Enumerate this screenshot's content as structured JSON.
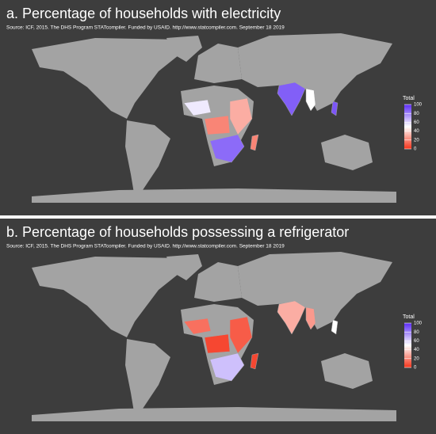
{
  "panels": [
    {
      "title": "a. Percentage of households with electricity",
      "source": "Source: ICF, 2015. The DHS Program STATcompiler. Funded by USAID. http://www.statcompiler.com. September 18 2019",
      "legend": {
        "title": "Total",
        "ticks": [
          0,
          20,
          40,
          60,
          80,
          100
        ]
      },
      "regions": [
        88,
        50,
        90,
        85,
        55,
        20,
        30,
        20
      ]
    },
    {
      "title": "b. Percentage of households possessing a refrigerator",
      "source": "Source: ICF, 2015. The DHS Program STATcompiler. Funded by USAID. http://www.statcompiler.com. September 18 2019",
      "legend": {
        "title": "Total",
        "ticks": [
          0,
          20,
          40,
          60,
          80,
          100
        ]
      },
      "regions": [
        30,
        25,
        50,
        65,
        15,
        5,
        10,
        5
      ]
    }
  ],
  "scale": {
    "range": [
      0,
      100
    ],
    "low": "#f5331a",
    "mid": "#ffffff",
    "high": "#5b2cf5",
    "land": "#a3a3a3",
    "background": "#3d3d3d"
  }
}
